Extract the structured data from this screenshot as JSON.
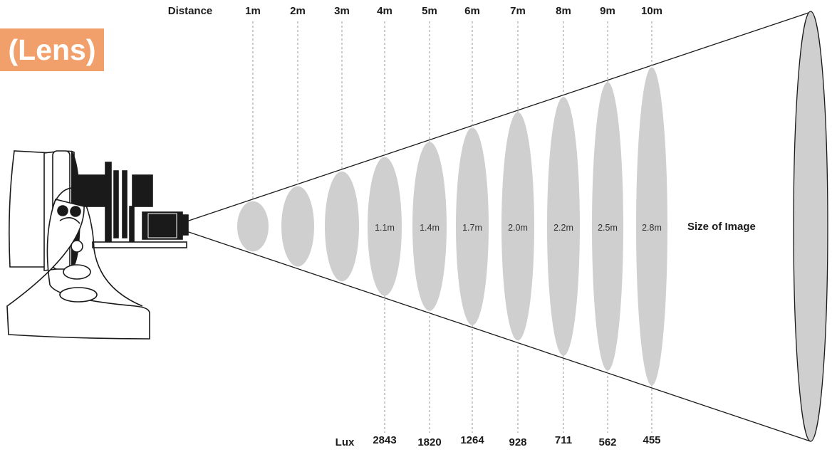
{
  "badge": {
    "text": "(Lens)"
  },
  "header": {
    "distance_label": "Distance"
  },
  "footer": {
    "lux_label": "Lux"
  },
  "side": {
    "size_label": "Size of Image"
  },
  "colors": {
    "badge": "#f2a06b",
    "ellipse": "#cfcfcf",
    "line": "#1a1a1a",
    "guide": "#9a9a9a"
  },
  "fixture": {
    "icon": "spotlight-fixture-icon"
  },
  "distances": [
    {
      "label": "1m",
      "size": "",
      "lux": ""
    },
    {
      "label": "2m",
      "size": "",
      "lux": ""
    },
    {
      "label": "3m",
      "size": "",
      "lux": ""
    },
    {
      "label": "4m",
      "size": "1.1m",
      "lux": "2843"
    },
    {
      "label": "5m",
      "size": "1.4m",
      "lux": "1820"
    },
    {
      "label": "6m",
      "size": "1.7m",
      "lux": "1264"
    },
    {
      "label": "7m",
      "size": "2.0m",
      "lux": "928"
    },
    {
      "label": "8m",
      "size": "2.2m",
      "lux": "711"
    },
    {
      "label": "9m",
      "size": "2.5m",
      "lux": "562"
    },
    {
      "label": "10m",
      "size": "2.8m",
      "lux": "455"
    }
  ]
}
